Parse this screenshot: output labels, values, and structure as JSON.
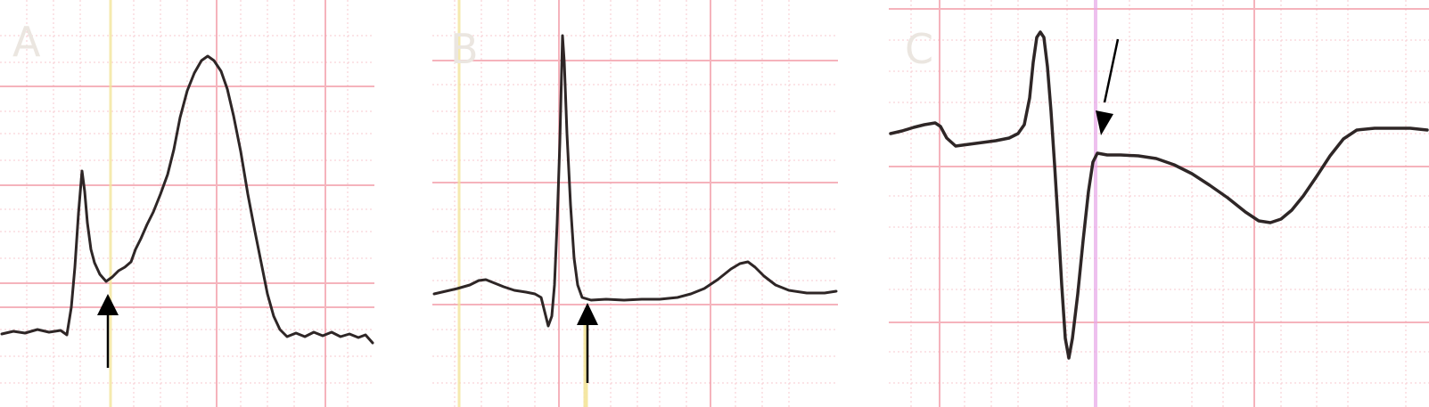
{
  "figure": {
    "panels": [
      {
        "id": "A",
        "label": "A",
        "arrow_color": "#000000"
      },
      {
        "id": "B",
        "label": "B",
        "arrow_color": "#000000"
      },
      {
        "id": "C",
        "label": "C",
        "arrow_color": "#000000"
      }
    ],
    "colors": {
      "trace": "#2e2626",
      "grid_major": "#f29aa6",
      "grid_minor": "#f7c9cf",
      "grid_yellow": "#f3e59a",
      "paper": "#ffffff"
    }
  }
}
